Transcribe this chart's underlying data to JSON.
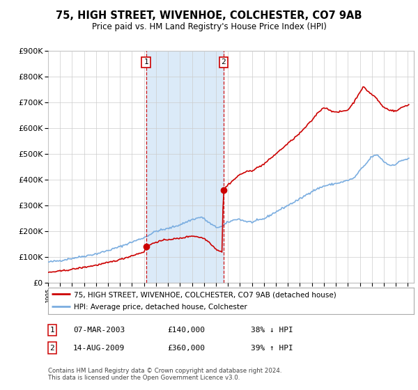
{
  "title": "75, HIGH STREET, WIVENHOE, COLCHESTER, CO7 9AB",
  "subtitle": "Price paid vs. HM Land Registry's House Price Index (HPI)",
  "legend_line1": "75, HIGH STREET, WIVENHOE, COLCHESTER, CO7 9AB (detached house)",
  "legend_line2": "HPI: Average price, detached house, Colchester",
  "purchase1_date": "07-MAR-2003",
  "purchase1_price": 140000,
  "purchase1_label": "38% ↓ HPI",
  "purchase2_date": "14-AUG-2009",
  "purchase2_price": 360000,
  "purchase2_label": "39% ↑ HPI",
  "footer": "Contains HM Land Registry data © Crown copyright and database right 2024.\nThis data is licensed under the Open Government Licence v3.0.",
  "ylim": [
    0,
    900000
  ],
  "yticks": [
    0,
    100000,
    200000,
    300000,
    400000,
    500000,
    600000,
    700000,
    800000,
    900000
  ],
  "price_color": "#cc0000",
  "hpi_color": "#7aade0",
  "hpi_fill_color": "#dbeaf8",
  "vline_color": "#cc0000",
  "background_color": "#ffffff",
  "purchase_year1": 2003.17,
  "purchase_year2": 2009.62,
  "xlim_left": 1995.0,
  "xlim_right": 2025.5
}
